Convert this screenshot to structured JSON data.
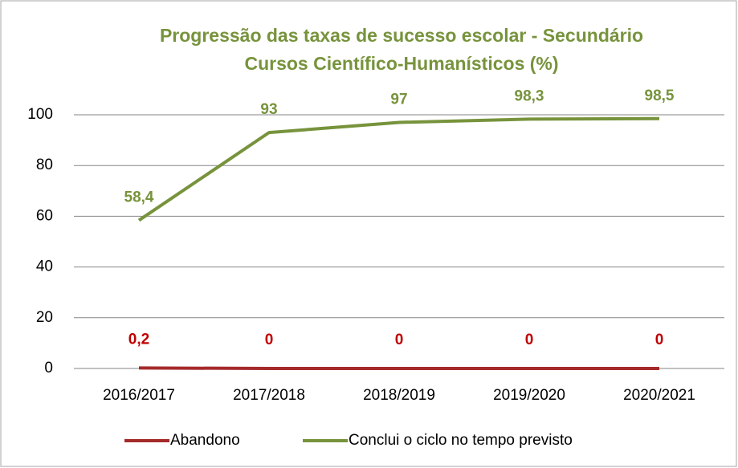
{
  "chart_data": {
    "type": "line",
    "title": [
      "Progressão das taxas de sucesso escolar - Secundário",
      "Cursos Científico-Humanísticos (%)"
    ],
    "categories": [
      "2016/2017",
      "2017/2018",
      "2018/2019",
      "2019/2020",
      "2020/2021"
    ],
    "series": [
      {
        "name": "Abandono",
        "color": "#a52a2a",
        "label_color": "#c00000",
        "values": [
          0.2,
          0,
          0,
          0,
          0
        ],
        "value_labels": [
          "0,2",
          "0",
          "0",
          "0",
          "0"
        ]
      },
      {
        "name": "Conclui o ciclo no tempo previsto",
        "color": "#77933c",
        "label_color": "#77933c",
        "values": [
          58.4,
          93,
          97,
          98.3,
          98.5
        ],
        "value_labels": [
          "58,4",
          "93",
          "97",
          "98,3",
          "98,5"
        ]
      }
    ],
    "ylim": [
      0,
      100
    ],
    "yticks": [
      0,
      20,
      40,
      60,
      80,
      100
    ],
    "grid": true,
    "legend": "bottom"
  }
}
